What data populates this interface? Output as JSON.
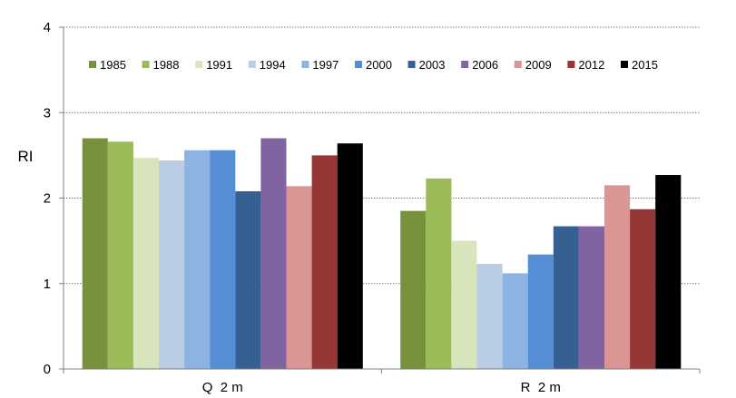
{
  "chart_data": {
    "type": "bar",
    "title": "",
    "xlabel": "",
    "ylabel": "RI",
    "ylim": [
      0,
      4
    ],
    "yticks": [
      "0",
      "1",
      "2",
      "3",
      "4"
    ],
    "grid": "horizontal dotted",
    "legend_position": "top",
    "categories": [
      "Q  2 m",
      "R  2 m"
    ],
    "series": [
      {
        "name": "1985",
        "color": "#76923c",
        "values": [
          2.7,
          1.85
        ]
      },
      {
        "name": "1988",
        "color": "#9bbb59",
        "values": [
          2.66,
          2.23
        ]
      },
      {
        "name": "1991",
        "color": "#d7e4bc",
        "values": [
          2.47,
          1.5
        ]
      },
      {
        "name": "1994",
        "color": "#b9cde5",
        "values": [
          2.44,
          1.23
        ]
      },
      {
        "name": "1997",
        "color": "#8db3e2",
        "values": [
          2.56,
          1.12
        ]
      },
      {
        "name": "2000",
        "color": "#558ed5",
        "values": [
          2.56,
          1.34
        ]
      },
      {
        "name": "2003",
        "color": "#366092",
        "values": [
          2.08,
          1.67
        ]
      },
      {
        "name": "2006",
        "color": "#8064a2",
        "values": [
          2.7,
          1.67
        ]
      },
      {
        "name": "2009",
        "color": "#d99694",
        "values": [
          2.14,
          2.15
        ]
      },
      {
        "name": "2012",
        "color": "#953735",
        "values": [
          2.5,
          1.87
        ]
      },
      {
        "name": "2015",
        "color": "#000000",
        "values": [
          2.64,
          2.27
        ]
      }
    ]
  }
}
